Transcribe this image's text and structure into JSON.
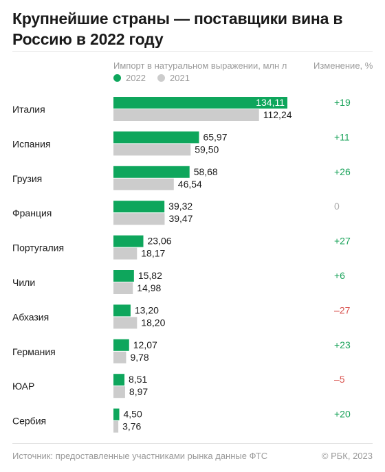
{
  "title": "Крупнейшие страны — поставщики вина в Россию в 2022 году",
  "subtitle": "Импорт в натуральном выражении, млн л",
  "change_header": "Изменение, %",
  "source": "Источник: предоставленные участниками рынка данные ФТС",
  "credit": "© РБК, 2023",
  "colors": {
    "series_2022": "#0ea65c",
    "series_2021": "#cccccc",
    "positive": "#1aa35a",
    "negative": "#d9534f",
    "neutral": "#aaaaaa"
  },
  "chart_data": {
    "type": "bar",
    "orientation": "horizontal",
    "categories": [
      "Италия",
      "Испания",
      "Грузия",
      "Франция",
      "Португалия",
      "Чили",
      "Абхазия",
      "Германия",
      "ЮАР",
      "Сербия"
    ],
    "series": [
      {
        "name": "2022",
        "values": [
          134.11,
          65.97,
          58.68,
          39.32,
          23.06,
          15.82,
          13.2,
          12.07,
          8.51,
          4.5
        ],
        "labels": [
          "134,11",
          "65,97",
          "58,68",
          "39,32",
          "23,06",
          "15,82",
          "13,20",
          "12,07",
          "8,51",
          "4,50"
        ]
      },
      {
        "name": "2021",
        "values": [
          112.24,
          59.5,
          46.54,
          39.47,
          18.17,
          14.98,
          18.2,
          9.78,
          8.97,
          3.76
        ],
        "labels": [
          "112,24",
          "59,50",
          "46,54",
          "39,47",
          "18,17",
          "14,98",
          "18,20",
          "9,78",
          "8,97",
          "3,76"
        ]
      }
    ],
    "change": [
      "+19",
      "+11",
      "+26",
      "0",
      "+27",
      "+6",
      "–27",
      "+23",
      "–5",
      "+20"
    ],
    "change_sign": [
      "pos",
      "pos",
      "pos",
      "zero",
      "pos",
      "pos",
      "neg",
      "pos",
      "neg",
      "pos"
    ],
    "xlim": [
      0,
      134.11
    ],
    "grid": false,
    "legend": "top"
  }
}
